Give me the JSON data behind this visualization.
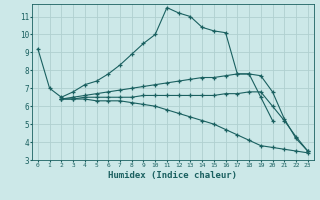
{
  "xlabel": "Humidex (Indice chaleur)",
  "bg_color": "#cce8e8",
  "grid_color": "#b0d0d0",
  "line_color": "#1a6060",
  "ylim": [
    3,
    11.7
  ],
  "xlim": [
    -0.5,
    23.5
  ],
  "yticks": [
    3,
    4,
    5,
    6,
    7,
    8,
    9,
    10,
    11
  ],
  "xticks": [
    0,
    1,
    2,
    3,
    4,
    5,
    6,
    7,
    8,
    9,
    10,
    11,
    12,
    13,
    14,
    15,
    16,
    17,
    18,
    19,
    20,
    21,
    22,
    23
  ],
  "lines": [
    {
      "x": [
        0,
        1,
        2,
        3,
        4,
        5,
        6,
        7,
        8,
        9,
        10,
        11,
        12,
        13,
        14,
        15,
        16,
        17,
        18,
        19,
        20
      ],
      "y": [
        9.2,
        7.0,
        6.5,
        6.8,
        7.2,
        7.4,
        7.8,
        8.3,
        8.9,
        9.5,
        10.0,
        11.5,
        11.2,
        11.0,
        10.4,
        10.2,
        10.1,
        7.8,
        7.8,
        6.5,
        5.2
      ]
    },
    {
      "x": [
        2,
        3,
        4,
        5,
        6,
        7,
        8,
        9,
        10,
        11,
        12,
        13,
        14,
        15,
        16,
        17,
        18,
        19,
        20,
        21,
        22,
        23
      ],
      "y": [
        6.4,
        6.5,
        6.6,
        6.7,
        6.8,
        6.9,
        7.0,
        7.1,
        7.2,
        7.3,
        7.4,
        7.5,
        7.6,
        7.6,
        7.7,
        7.8,
        7.8,
        7.7,
        6.8,
        5.3,
        4.2,
        3.5
      ]
    },
    {
      "x": [
        2,
        3,
        4,
        5,
        6,
        7,
        8,
        9,
        10,
        11,
        12,
        13,
        14,
        15,
        16,
        17,
        18,
        19,
        20,
        21,
        22,
        23
      ],
      "y": [
        6.4,
        6.4,
        6.5,
        6.5,
        6.5,
        6.5,
        6.5,
        6.6,
        6.6,
        6.6,
        6.6,
        6.6,
        6.6,
        6.6,
        6.7,
        6.7,
        6.8,
        6.8,
        6.0,
        5.2,
        4.3,
        3.5
      ]
    },
    {
      "x": [
        2,
        3,
        4,
        5,
        6,
        7,
        8,
        9,
        10,
        11,
        12,
        13,
        14,
        15,
        16,
        17,
        18,
        19,
        20,
        21,
        22,
        23
      ],
      "y": [
        6.4,
        6.4,
        6.4,
        6.3,
        6.3,
        6.3,
        6.2,
        6.1,
        6.0,
        5.8,
        5.6,
        5.4,
        5.2,
        5.0,
        4.7,
        4.4,
        4.1,
        3.8,
        3.7,
        3.6,
        3.5,
        3.4
      ]
    }
  ]
}
